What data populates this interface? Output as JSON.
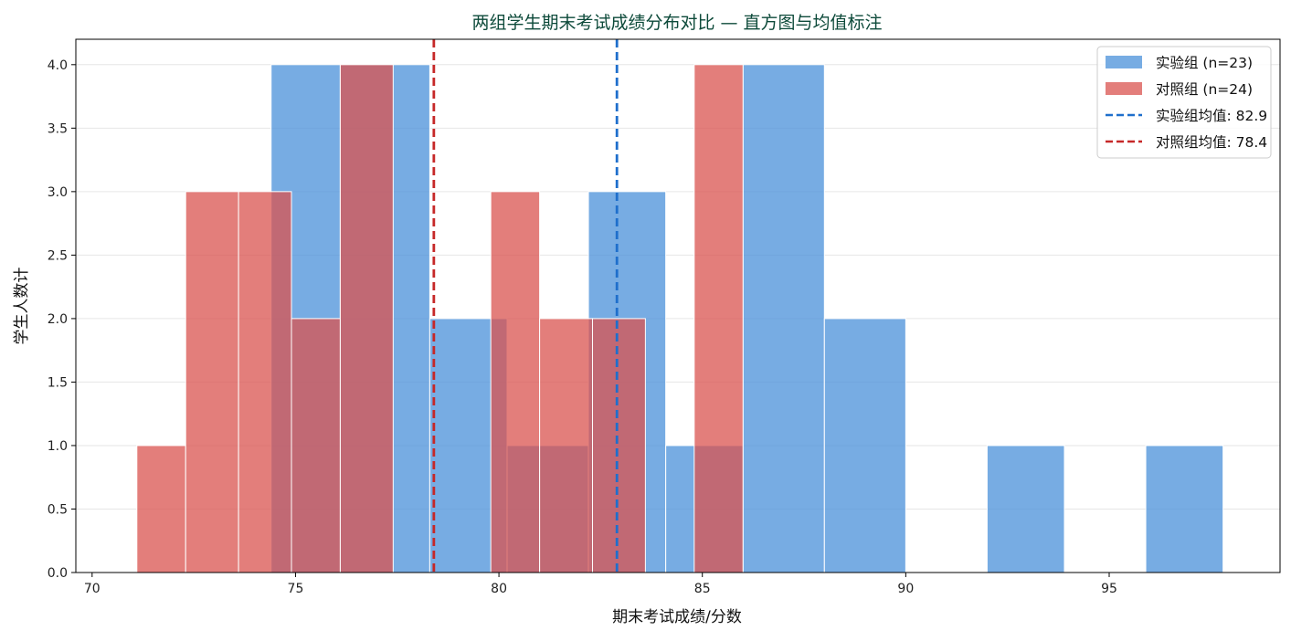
{
  "chart_data": {
    "type": "bar",
    "title": "两组学生期末考试成绩分布对比 — 直方图与均值标注",
    "xlabel": "期末考试成绩/分数",
    "ylabel": "学生人数计",
    "xlim": [
      69.6,
      99.2
    ],
    "ylim": [
      0,
      4.2
    ],
    "x_ticks": [
      70,
      75,
      80,
      85,
      90,
      95
    ],
    "y_ticks": [
      0.0,
      0.5,
      1.0,
      1.5,
      2.0,
      2.5,
      3.0,
      3.5,
      4.0
    ],
    "grid": "horizontal",
    "legend_position": "top-right",
    "series": [
      {
        "name": "实验组 (n=23)",
        "color": "#4a90d9",
        "bins": [
          {
            "x0": 74.4,
            "x1": 76.1,
            "count": 4
          },
          {
            "x0": 76.1,
            "x1": 78.3,
            "count": 4
          },
          {
            "x0": 78.3,
            "x1": 80.2,
            "count": 2
          },
          {
            "x0": 80.2,
            "x1": 82.2,
            "count": 1
          },
          {
            "x0": 82.2,
            "x1": 84.1,
            "count": 3
          },
          {
            "x0": 84.1,
            "x1": 86.0,
            "count": 1
          },
          {
            "x0": 86.0,
            "x1": 88.0,
            "count": 4
          },
          {
            "x0": 88.0,
            "x1": 90.0,
            "count": 2
          },
          {
            "x0": 92.0,
            "x1": 93.9,
            "count": 1
          },
          {
            "x0": 95.9,
            "x1": 97.8,
            "count": 1
          }
        ]
      },
      {
        "name": "对照组 (n=24)",
        "color": "#d9534f",
        "bins": [
          {
            "x0": 71.1,
            "x1": 72.3,
            "count": 1
          },
          {
            "x0": 72.3,
            "x1": 73.6,
            "count": 3
          },
          {
            "x0": 73.6,
            "x1": 74.9,
            "count": 3
          },
          {
            "x0": 74.9,
            "x1": 76.1,
            "count": 2
          },
          {
            "x0": 76.1,
            "x1": 77.4,
            "count": 4
          },
          {
            "x0": 79.8,
            "x1": 81.0,
            "count": 3
          },
          {
            "x0": 81.0,
            "x1": 82.3,
            "count": 2
          },
          {
            "x0": 82.3,
            "x1": 83.6,
            "count": 2
          },
          {
            "x0": 84.8,
            "x1": 86.0,
            "count": 4
          }
        ]
      }
    ],
    "mean_lines": [
      {
        "name": "实验组均值: 82.9",
        "value": 82.9,
        "color": "#1f6fcc"
      },
      {
        "name": "对照组均值: 78.4",
        "value": 78.4,
        "color": "#c62828"
      }
    ]
  },
  "colors": {
    "title": "#0d4a3a",
    "grid": "#e6e6e6",
    "bar_edge": "#ffffff",
    "axis": "#000000"
  }
}
